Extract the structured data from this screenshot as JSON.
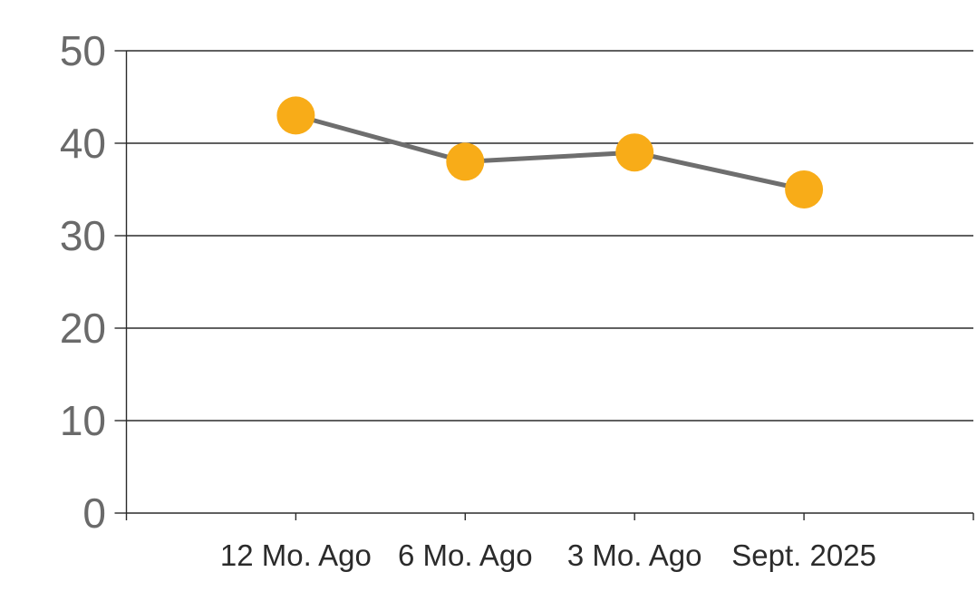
{
  "chart_data": {
    "type": "line",
    "title": "",
    "xlabel": "",
    "ylabel": "",
    "categories": [
      "12 Mo. Ago",
      "6 Mo. Ago",
      "3 Mo. Ago",
      "Sept. 2025"
    ],
    "series": [
      {
        "name": "series-1",
        "values": [
          43,
          38,
          39,
          35
        ]
      }
    ],
    "ylim": [
      0,
      50
    ],
    "yticks": [
      0,
      10,
      20,
      30,
      40,
      50
    ],
    "grid": "horizontal",
    "legend": "none",
    "marker_style": "large-circle",
    "colors": {
      "marker": "#F8AC18",
      "line": "#6E6E6E",
      "gridline": "#2B2B2B",
      "axis": "#2B2B2B",
      "y_tick_label": "#6A6A6A",
      "x_tick_label": "#2B2B2B",
      "background": "#FFFFFF"
    }
  }
}
